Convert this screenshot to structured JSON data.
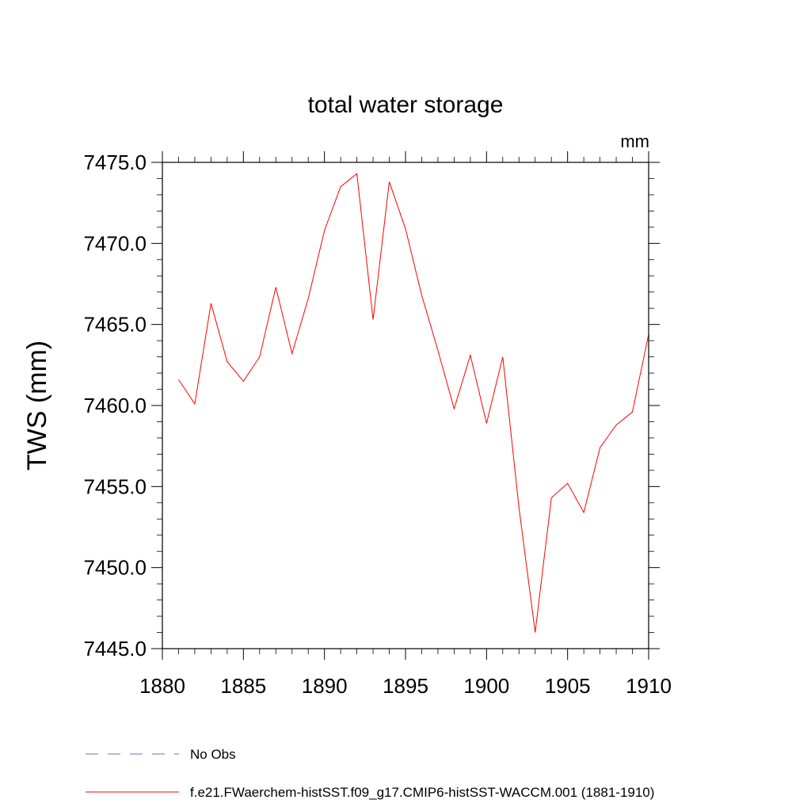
{
  "chart_data": {
    "type": "line",
    "title": "total water storage",
    "units_label": "mm",
    "ylabel": "TWS  (mm)",
    "xlabel": "",
    "xlim": [
      1880,
      1910
    ],
    "ylim": [
      7445,
      7475
    ],
    "x_ticks": [
      1880,
      1885,
      1890,
      1895,
      1900,
      1905,
      1910
    ],
    "x_tick_labels": [
      "1880",
      "1885",
      "1890",
      "1895",
      "1900",
      "1905",
      "1910"
    ],
    "y_ticks": [
      7445,
      7450,
      7455,
      7460,
      7465,
      7470,
      7475
    ],
    "y_tick_labels": [
      "7445.0",
      "7450.0",
      "7455.0",
      "7460.0",
      "7465.0",
      "7470.0",
      "7475.0"
    ],
    "grid": false,
    "legend_position": "bottom",
    "legend": [
      {
        "label": "No Obs",
        "style": "dashed",
        "color": "#7b68c8"
      },
      {
        "label": "f.e21.FWaerchem-histSST.f09_g17.CMIP6-histSST-WACCM.001 (1881-1910)",
        "style": "solid",
        "color": "#ff0000"
      }
    ],
    "series": [
      {
        "name": "f.e21.FWaerchem-histSST.f09_g17.CMIP6-histSST-WACCM.001 (1881-1910)",
        "color": "#ff0000",
        "x": [
          1881,
          1882,
          1883,
          1884,
          1885,
          1886,
          1887,
          1888,
          1889,
          1890,
          1891,
          1892,
          1893,
          1894,
          1895,
          1896,
          1897,
          1898,
          1899,
          1900,
          1901,
          1902,
          1903,
          1904,
          1905,
          1906,
          1907,
          1908,
          1909,
          1910
        ],
        "y": [
          7461.6,
          7460.1,
          7466.3,
          7462.7,
          7461.5,
          7463.0,
          7467.3,
          7463.2,
          7466.6,
          7470.8,
          7473.5,
          7474.3,
          7465.3,
          7473.8,
          7470.9,
          7466.8,
          7463.4,
          7459.8,
          7463.1,
          7458.9,
          7463.0,
          7453.7,
          7446.0,
          7454.3,
          7455.2,
          7453.4,
          7457.4,
          7458.8,
          7459.6,
          7464.4
        ]
      }
    ]
  }
}
